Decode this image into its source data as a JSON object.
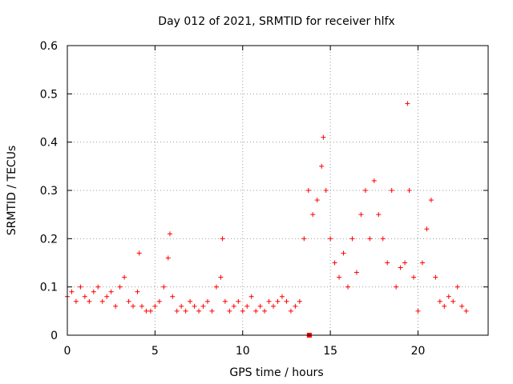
{
  "chart_data": {
    "type": "scatter",
    "title": "Day 012 of 2021, SRMTID for receiver hlfx",
    "xlabel": "GPS time / hours",
    "ylabel": "SRMTID / TECUs",
    "xlim": [
      0,
      24.0
    ],
    "ylim": [
      0,
      0.6
    ],
    "xticks": [
      0,
      5,
      10,
      15,
      20
    ],
    "yticks": [
      0,
      0.1,
      0.2,
      0.3,
      0.4,
      0.5,
      0.6
    ],
    "ytick_labels": [
      "0",
      "0.1",
      "0.2",
      "0.3",
      "0.4",
      "0.5",
      "0.6"
    ],
    "grid": true,
    "marker": "+",
    "color": "#ff0000",
    "series": [
      {
        "name": "SRMTID",
        "x": [
          0.0,
          0.25,
          0.5,
          0.75,
          1.0,
          1.25,
          1.5,
          1.75,
          2.0,
          2.25,
          2.5,
          2.75,
          3.0,
          3.25,
          3.5,
          3.75,
          4.0,
          4.1,
          4.25,
          4.5,
          4.75,
          5.0,
          5.25,
          5.5,
          5.75,
          5.85,
          6.0,
          6.25,
          6.5,
          6.75,
          7.0,
          7.25,
          7.5,
          7.75,
          8.0,
          8.25,
          8.5,
          8.75,
          8.85,
          9.0,
          9.25,
          9.5,
          9.75,
          10.0,
          10.25,
          10.5,
          10.75,
          11.0,
          11.25,
          11.5,
          11.75,
          12.0,
          12.25,
          12.5,
          12.75,
          13.0,
          13.25,
          13.5,
          13.75,
          14.0,
          14.25,
          14.5,
          14.6,
          14.75,
          15.0,
          15.25,
          15.5,
          15.75,
          16.0,
          16.25,
          16.5,
          16.75,
          17.0,
          17.25,
          17.5,
          17.75,
          18.0,
          18.25,
          18.5,
          18.75,
          19.0,
          19.25,
          19.4,
          19.5,
          19.75,
          20.0,
          20.25,
          20.5,
          20.75,
          21.0,
          21.25,
          21.5,
          21.75,
          22.0,
          22.25,
          22.5,
          22.75
        ],
        "y": [
          0.08,
          0.09,
          0.07,
          0.1,
          0.08,
          0.07,
          0.09,
          0.1,
          0.07,
          0.08,
          0.09,
          0.06,
          0.1,
          0.12,
          0.07,
          0.06,
          0.09,
          0.17,
          0.06,
          0.05,
          0.05,
          0.06,
          0.07,
          0.1,
          0.16,
          0.21,
          0.08,
          0.05,
          0.06,
          0.05,
          0.07,
          0.06,
          0.05,
          0.06,
          0.07,
          0.05,
          0.1,
          0.12,
          0.2,
          0.07,
          0.05,
          0.06,
          0.07,
          0.05,
          0.06,
          0.08,
          0.05,
          0.06,
          0.05,
          0.07,
          0.06,
          0.07,
          0.08,
          0.07,
          0.05,
          0.06,
          0.07,
          0.2,
          0.3,
          0.25,
          0.28,
          0.35,
          0.41,
          0.3,
          0.2,
          0.15,
          0.12,
          0.17,
          0.1,
          0.2,
          0.13,
          0.25,
          0.3,
          0.2,
          0.32,
          0.25,
          0.2,
          0.15,
          0.3,
          0.1,
          0.14,
          0.15,
          0.48,
          0.3,
          0.12,
          0.05,
          0.15,
          0.22,
          0.28,
          0.12,
          0.07,
          0.06,
          0.08,
          0.07,
          0.1,
          0.06,
          0.05
        ]
      }
    ],
    "special_marker": {
      "x": 13.8,
      "y": 0.0
    }
  }
}
